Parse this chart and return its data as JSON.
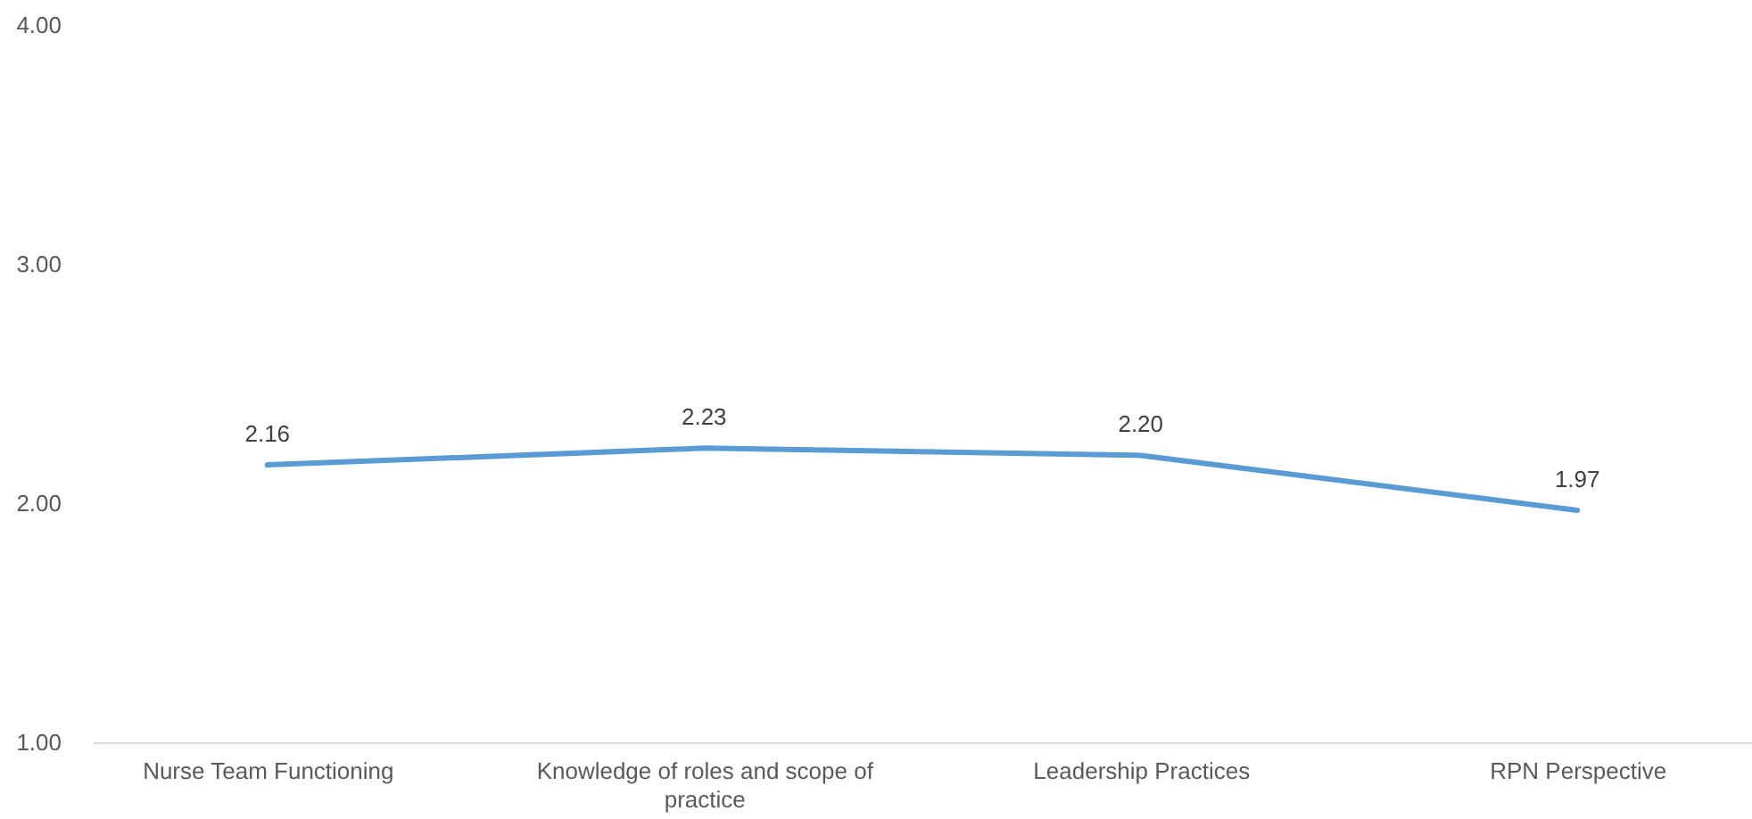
{
  "chart_data": {
    "type": "line",
    "categories": [
      "Nurse Team Functioning",
      "Knowledge of roles and scope of practice",
      "Leadership Practices",
      "RPN Perspective"
    ],
    "series": [
      {
        "color": "#5b9bd5",
        "values": [
          2.16,
          2.23,
          2.2,
          1.97
        ],
        "value_labels": [
          "2.16",
          "2.23",
          "2.20",
          "1.97"
        ]
      }
    ],
    "ylim": [
      1,
      4
    ],
    "yticks": [
      {
        "value": 1,
        "label": "1.00"
      },
      {
        "value": 2,
        "label": "2.00"
      },
      {
        "value": 3,
        "label": "3.00"
      },
      {
        "value": 4,
        "label": "4.00"
      }
    ],
    "grid": false,
    "marker": "none",
    "line_style": "solid"
  }
}
